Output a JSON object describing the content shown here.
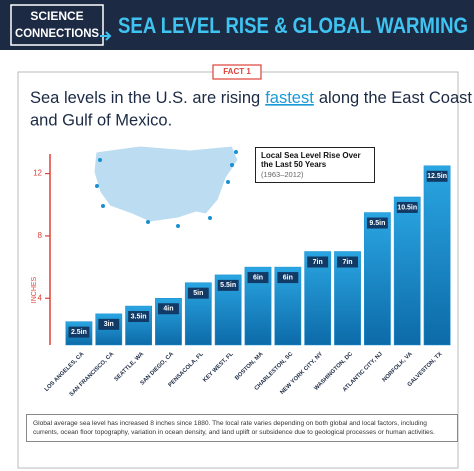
{
  "header": {
    "brand": [
      "SCIENCE",
      "CONNECTIONS"
    ],
    "title": "SEA LEVEL RISE & GLOBAL WARMING"
  },
  "fact": "FACT 1",
  "subtitle": [
    "Sea levels in the U.S. are rising",
    "fastest",
    "along the East Coast",
    "and Gulf of Mexico."
  ],
  "chart_data": {
    "type": "bar",
    "ylabel": "INCHES",
    "categories": [
      "LOS ANGELES, CA",
      "SAN FRANCISCO, CA",
      "SEATTLE, WA",
      "SAN DIEGO, CA",
      "PENSACOLA, FL",
      "KEY WEST, FL",
      "BOSTON, MA",
      "CHARLESTON, SC",
      "NEW YORK CITY, NY",
      "WASHINGTON, DC",
      "ATLANTIC CITY, NJ",
      "NORFOLK, VA",
      "GALVESTON, TX"
    ],
    "series": [
      {
        "name": "Local Sea Level Rise Over the Last 50 Years",
        "color": "#1a8fd2",
        "values": [
          2.5,
          3,
          3.5,
          4,
          5,
          5.5,
          6,
          6,
          7,
          7,
          9.5,
          10.5,
          12.5
        ],
        "value_labels": [
          "2.5in",
          "3in",
          "3.5in",
          "4in",
          "5in",
          "5.5in",
          "6in",
          "6in",
          "7in",
          "7in",
          "9.5in",
          "10.5in",
          "12.5in"
        ]
      }
    ],
    "legend_subtitle": "(1963–2012)",
    "ylim": [
      1,
      13
    ],
    "yticks": [
      4,
      8,
      12
    ],
    "axis_color": "#e0403a"
  },
  "note": "Global average sea level has increased 8 inches since 1880. The local rate varies depending on both global and local factors, including currents, ocean floor topography, variation in ocean density, and land uplift or subsidence due to geological processes or human activities."
}
